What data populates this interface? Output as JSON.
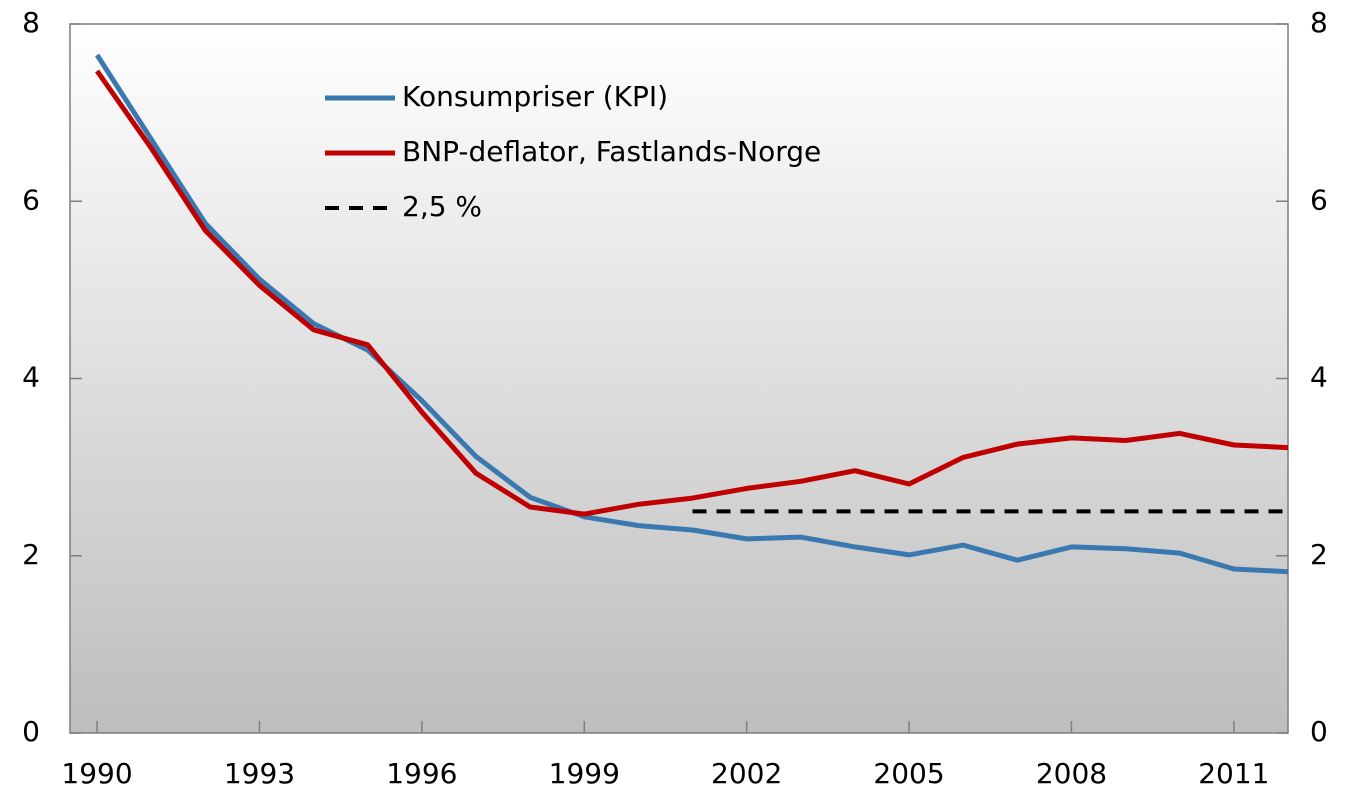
{
  "chart_data": {
    "type": "line",
    "x": [
      1990,
      1991,
      1992,
      1993,
      1994,
      1995,
      1996,
      1997,
      1998,
      1999,
      2000,
      2001,
      2002,
      2003,
      2004,
      2005,
      2006,
      2007,
      2008,
      2009,
      2010,
      2011,
      2012
    ],
    "series": [
      {
        "name": "Konsumpriser (KPI)",
        "color": "#3a78b0",
        "dash": false,
        "values": [
          7.65,
          6.7,
          5.75,
          5.12,
          4.62,
          4.32,
          3.75,
          3.12,
          2.66,
          2.44,
          2.34,
          2.29,
          2.19,
          2.21,
          2.1,
          2.01,
          2.12,
          1.95,
          2.1,
          2.08,
          2.03,
          1.85,
          1.82
        ]
      },
      {
        "name": "BNP-deflator, Fastlands-Norge",
        "color": "#c00000",
        "dash": false,
        "values": [
          7.47,
          6.6,
          5.67,
          5.05,
          4.55,
          4.38,
          3.62,
          2.93,
          2.55,
          2.47,
          2.58,
          2.65,
          2.76,
          2.84,
          2.96,
          2.81,
          3.11,
          3.26,
          3.33,
          3.3,
          3.38,
          3.25,
          3.22
        ]
      },
      {
        "name": "2,5 %",
        "color": "#000000",
        "dash": true,
        "values": [
          null,
          null,
          null,
          null,
          null,
          null,
          null,
          null,
          null,
          null,
          null,
          2.5,
          2.5,
          2.5,
          2.5,
          2.5,
          2.5,
          2.5,
          2.5,
          2.5,
          2.5,
          2.5,
          2.5
        ]
      }
    ],
    "xlim": [
      1989.5,
      2012
    ],
    "xticks": [
      1990,
      1993,
      1996,
      1999,
      2002,
      2005,
      2008,
      2011
    ],
    "ylim": [
      0,
      8
    ],
    "yticks": [
      0,
      2,
      4,
      6,
      8
    ],
    "y2lim": [
      0,
      8
    ],
    "y2ticks": [
      0,
      2,
      4,
      6,
      8
    ],
    "legend": "upper-center"
  }
}
